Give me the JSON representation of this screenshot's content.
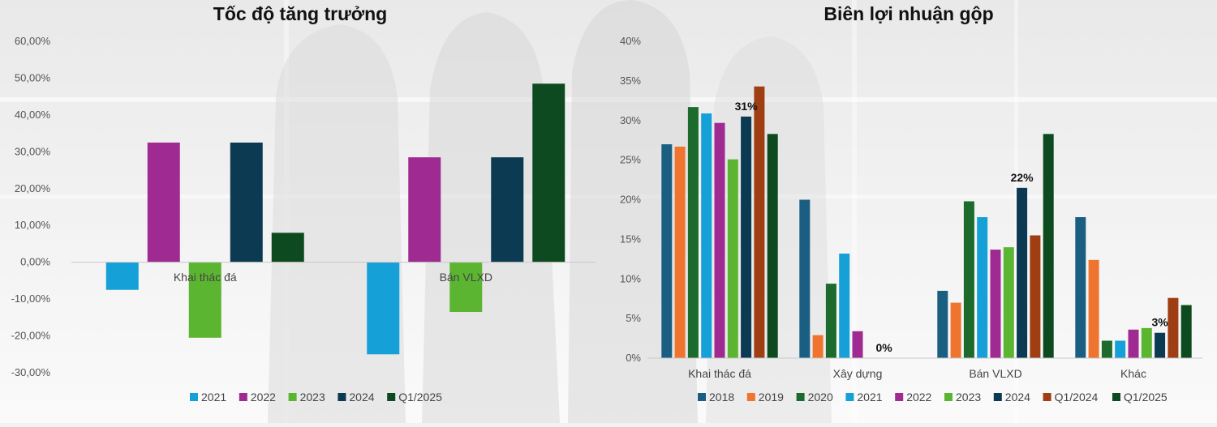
{
  "colors": {
    "2018": "#1a5f82",
    "2019": "#ee7430",
    "2020": "#1d6b2c",
    "2021": "#15a0d8",
    "2022": "#9f2a92",
    "2023": "#5cb531",
    "2024": "#0c3a52",
    "Q1/2024": "#9e3e12",
    "Q1/2025": "#0e4a1f"
  },
  "chart_data": [
    {
      "type": "bar",
      "title": "Tốc độ tăng trưởng",
      "categories": [
        "Khai thác đá",
        "Bán VLXD"
      ],
      "series": [
        {
          "name": "2021",
          "values": [
            -7.5,
            -25.0
          ]
        },
        {
          "name": "2022",
          "values": [
            32.5,
            28.5
          ]
        },
        {
          "name": "2023",
          "values": [
            -20.5,
            -13.5
          ]
        },
        {
          "name": "2024",
          "values": [
            32.5,
            28.5
          ]
        },
        {
          "name": "Q1/2025",
          "values": [
            8.0,
            48.5
          ]
        }
      ],
      "ylim": [
        -30,
        60
      ],
      "yticks": [
        "60,00%",
        "50,00%",
        "40,00%",
        "30,00%",
        "20,00%",
        "10,00%",
        "0,00%",
        "-10,00%",
        "-20,00%",
        "-30,00%"
      ],
      "legend": "bottom",
      "grid": false
    },
    {
      "type": "bar",
      "title": "Biên lợi nhuận gộp",
      "categories": [
        "Khai thác đá",
        "Xây dựng",
        "Bán VLXD",
        "Khác"
      ],
      "series": [
        {
          "name": "2018",
          "values": [
            27.0,
            20.0,
            8.5,
            17.8
          ]
        },
        {
          "name": "2019",
          "values": [
            26.7,
            2.9,
            7.0,
            12.4
          ]
        },
        {
          "name": "2020",
          "values": [
            31.7,
            9.4,
            19.8,
            2.2
          ]
        },
        {
          "name": "2021",
          "values": [
            30.9,
            13.2,
            17.8,
            2.2
          ]
        },
        {
          "name": "2022",
          "values": [
            29.7,
            3.4,
            13.7,
            3.6
          ]
        },
        {
          "name": "2023",
          "values": [
            25.1,
            0,
            14.0,
            3.8
          ]
        },
        {
          "name": "2024",
          "values": [
            30.5,
            0,
            21.5,
            3.2
          ]
        },
        {
          "name": "Q1/2024",
          "values": [
            34.3,
            0,
            15.5,
            7.6
          ]
        },
        {
          "name": "Q1/2025",
          "values": [
            28.3,
            0,
            28.3,
            6.7
          ]
        }
      ],
      "data_labels": [
        {
          "category": "Khai thác đá",
          "series": "2024",
          "text": "31%"
        },
        {
          "category": "Xây dựng",
          "series": "2024",
          "text": "0%"
        },
        {
          "category": "Bán VLXD",
          "series": "2024",
          "text": "22%"
        },
        {
          "category": "Khác",
          "series": "2024",
          "text": "3%"
        }
      ],
      "ylim": [
        0,
        40
      ],
      "yticks": [
        "40%",
        "35%",
        "30%",
        "25%",
        "20%",
        "15%",
        "10%",
        "5%",
        "0%"
      ],
      "legend": "bottom",
      "grid": false
    }
  ]
}
